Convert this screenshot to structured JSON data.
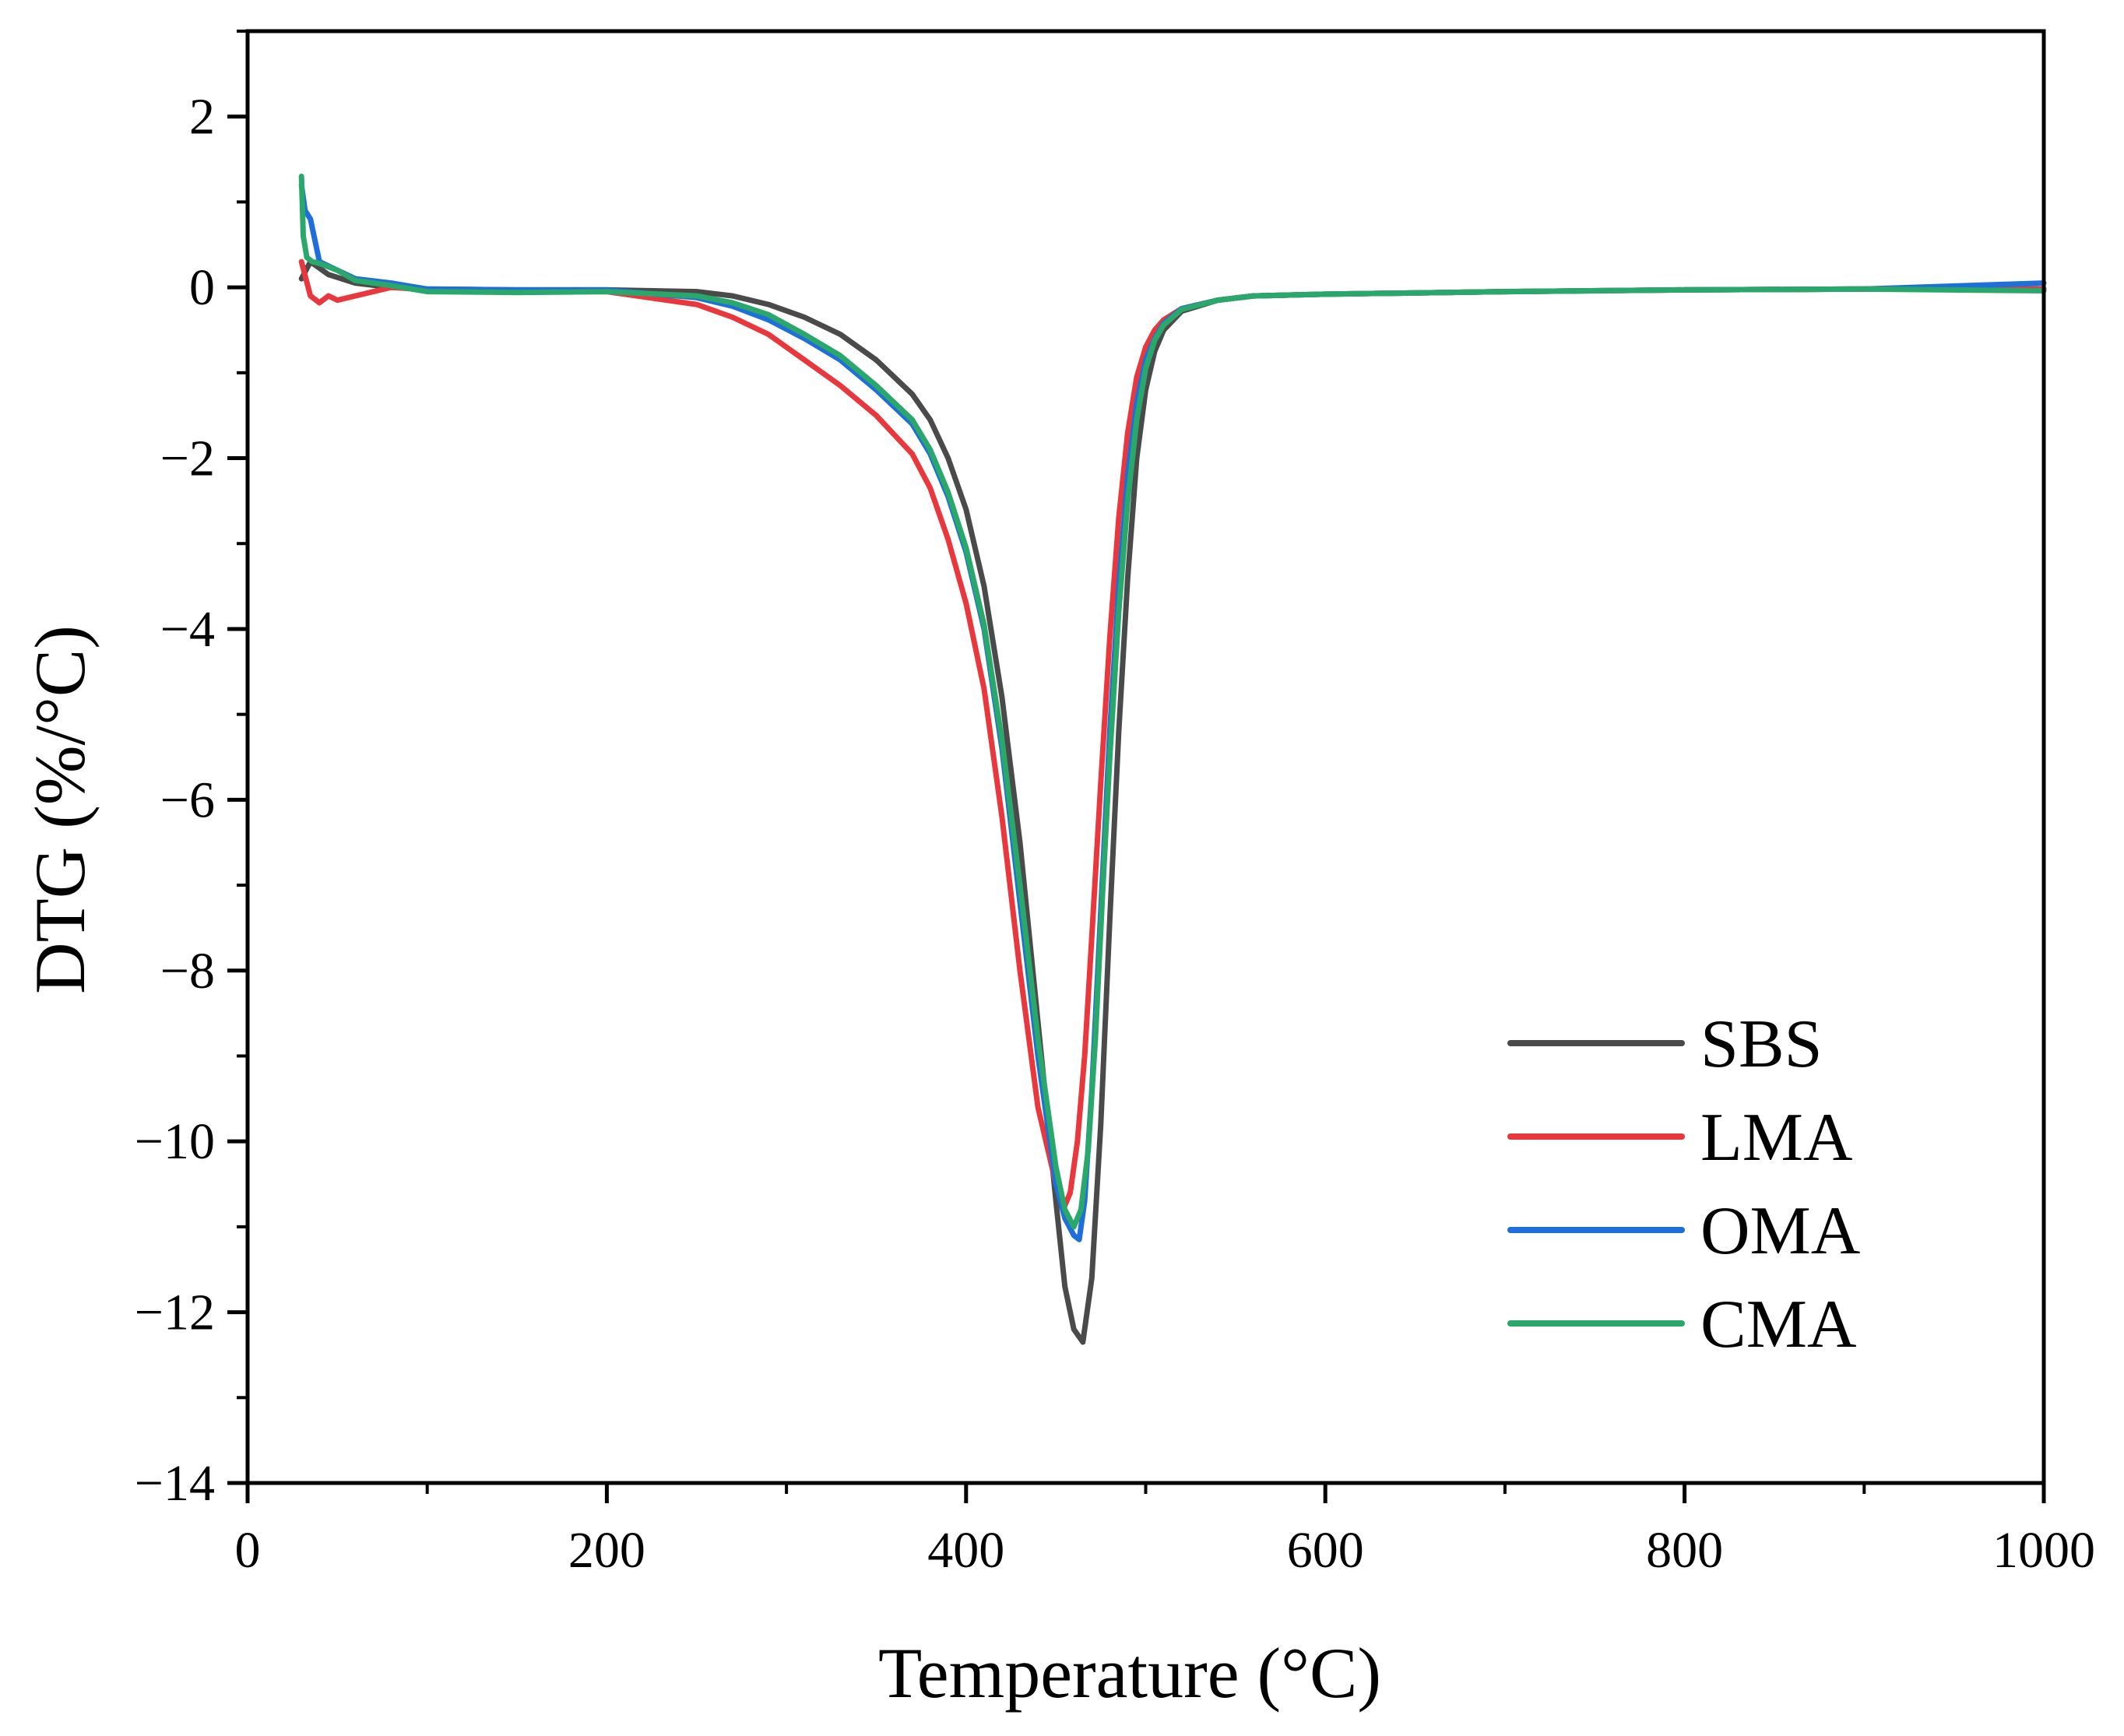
{
  "chart_data": {
    "type": "line",
    "xlabel": "Temperature (°C)",
    "ylabel": "DTG (%/°C)",
    "xlim": [
      0,
      1000
    ],
    "ylim": [
      -14,
      3
    ],
    "xticks": [
      0,
      200,
      400,
      600,
      800,
      1000
    ],
    "xtick_labels": [
      "0",
      "200",
      "400",
      "600",
      "800",
      "1000"
    ],
    "yticks": [
      2,
      0,
      -2,
      -4,
      -6,
      -8,
      -10,
      -12,
      -14
    ],
    "ytick_labels": [
      "2",
      "0",
      "−2",
      "−4",
      "−6",
      "−8",
      "−10",
      "−12",
      "−14"
    ],
    "grid": false,
    "legend_position": "lower-right",
    "series": [
      {
        "name": "SBS",
        "color": "#4a4a4a",
        "x": [
          30,
          35,
          45,
          60,
          80,
          100,
          150,
          200,
          250,
          270,
          290,
          310,
          330,
          350,
          370,
          380,
          390,
          400,
          410,
          420,
          430,
          440,
          450,
          455,
          460,
          465,
          470,
          475,
          480,
          485,
          490,
          495,
          500,
          505,
          510,
          520,
          540,
          560,
          600,
          700,
          800,
          900,
          1000
        ],
        "y": [
          0.1,
          0.3,
          0.15,
          0.05,
          0.0,
          -0.02,
          -0.03,
          -0.03,
          -0.05,
          -0.1,
          -0.2,
          -0.35,
          -0.55,
          -0.85,
          -1.25,
          -1.55,
          -2.0,
          -2.6,
          -3.5,
          -4.8,
          -6.5,
          -8.6,
          -10.7,
          -11.7,
          -12.2,
          -12.35,
          -11.6,
          -9.8,
          -7.4,
          -5.2,
          -3.4,
          -2.0,
          -1.2,
          -0.75,
          -0.5,
          -0.28,
          -0.15,
          -0.1,
          -0.08,
          -0.05,
          -0.03,
          -0.02,
          -0.02
        ]
      },
      {
        "name": "LMA",
        "color": "#e8383d",
        "x": [
          30,
          35,
          40,
          45,
          50,
          60,
          80,
          100,
          150,
          200,
          250,
          270,
          290,
          310,
          330,
          350,
          370,
          380,
          390,
          400,
          410,
          420,
          430,
          440,
          450,
          455,
          458,
          462,
          466,
          470,
          475,
          480,
          485,
          490,
          495,
          500,
          505,
          510,
          520,
          540,
          560,
          600,
          700,
          800,
          900,
          1000
        ],
        "y": [
          0.3,
          -0.1,
          -0.18,
          -0.1,
          -0.15,
          -0.1,
          0.0,
          -0.03,
          -0.05,
          -0.05,
          -0.2,
          -0.35,
          -0.55,
          -0.85,
          -1.15,
          -1.5,
          -1.95,
          -2.35,
          -2.95,
          -3.7,
          -4.7,
          -6.2,
          -8.0,
          -9.6,
          -10.5,
          -10.75,
          -10.6,
          -10.0,
          -9.0,
          -7.6,
          -5.8,
          -4.1,
          -2.7,
          -1.7,
          -1.05,
          -0.7,
          -0.5,
          -0.38,
          -0.25,
          -0.15,
          -0.1,
          -0.08,
          -0.05,
          -0.03,
          -0.02,
          -0.02
        ]
      },
      {
        "name": "OMA",
        "color": "#1e6fd9",
        "x": [
          30,
          32,
          35,
          40,
          50,
          60,
          80,
          100,
          150,
          200,
          250,
          270,
          290,
          310,
          330,
          350,
          370,
          380,
          390,
          400,
          410,
          420,
          430,
          440,
          450,
          455,
          460,
          463,
          466,
          470,
          475,
          480,
          485,
          490,
          495,
          500,
          505,
          510,
          520,
          540,
          560,
          600,
          700,
          800,
          900,
          1000
        ],
        "y": [
          1.2,
          0.9,
          0.8,
          0.3,
          0.2,
          0.1,
          0.05,
          -0.02,
          -0.03,
          -0.03,
          -0.12,
          -0.22,
          -0.38,
          -0.6,
          -0.85,
          -1.2,
          -1.6,
          -1.95,
          -2.45,
          -3.1,
          -4.0,
          -5.4,
          -7.2,
          -9.0,
          -10.5,
          -10.9,
          -11.1,
          -11.15,
          -10.7,
          -9.4,
          -7.3,
          -5.2,
          -3.5,
          -2.2,
          -1.35,
          -0.85,
          -0.6,
          -0.42,
          -0.25,
          -0.15,
          -0.1,
          -0.08,
          -0.05,
          -0.03,
          -0.02,
          0.05
        ]
      },
      {
        "name": "CMA",
        "color": "#2aa86b",
        "x": [
          30,
          31,
          33,
          36,
          40,
          50,
          60,
          80,
          100,
          150,
          200,
          250,
          270,
          290,
          310,
          330,
          350,
          370,
          380,
          390,
          400,
          410,
          420,
          430,
          440,
          450,
          455,
          460,
          464,
          468,
          472,
          476,
          480,
          485,
          490,
          495,
          500,
          505,
          510,
          520,
          540,
          560,
          600,
          700,
          800,
          900,
          1000
        ],
        "y": [
          1.3,
          0.6,
          0.35,
          0.3,
          0.28,
          0.2,
          0.08,
          0.02,
          -0.05,
          -0.06,
          -0.05,
          -0.1,
          -0.18,
          -0.32,
          -0.55,
          -0.8,
          -1.15,
          -1.55,
          -1.9,
          -2.4,
          -3.05,
          -3.95,
          -5.3,
          -7.0,
          -8.8,
          -10.3,
          -10.8,
          -11.0,
          -10.8,
          -10.1,
          -8.8,
          -7.1,
          -5.5,
          -3.8,
          -2.5,
          -1.55,
          -0.95,
          -0.62,
          -0.44,
          -0.26,
          -0.15,
          -0.1,
          -0.08,
          -0.05,
          -0.03,
          -0.02,
          -0.04
        ]
      }
    ]
  }
}
